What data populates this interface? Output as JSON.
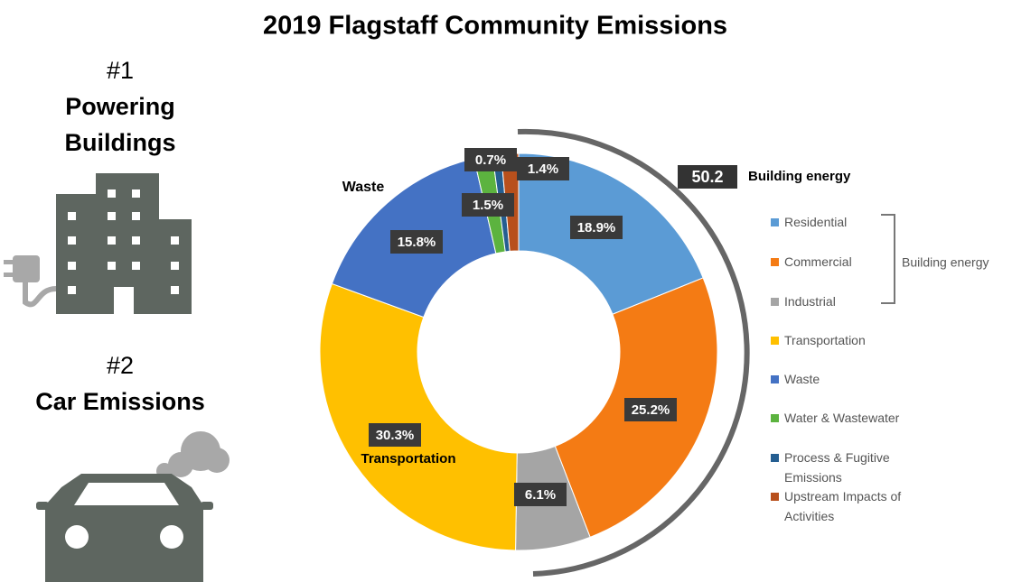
{
  "left_panel": {
    "items": [
      {
        "rank": "#1",
        "label": "Powering Buildings"
      },
      {
        "rank": "#2",
        "label": "Car Emissions"
      }
    ]
  },
  "chart_data": {
    "type": "donut",
    "title": "2019 Flagstaff Community Emissions",
    "categories": [
      "Residential",
      "Commercial",
      "Industrial",
      "Transportation",
      "Waste",
      "Water & Wastewater",
      "Process & Fugitive Emissions",
      "Upstream Impacts of Activities"
    ],
    "values": [
      18.9,
      25.2,
      6.1,
      30.3,
      15.8,
      1.5,
      0.7,
      1.4
    ],
    "value_labels": [
      "18.9%",
      "25.2%",
      "6.1%",
      "30.3%",
      "15.8%",
      "1.5%",
      "0.7%",
      "1.4%"
    ],
    "colors": [
      "#5b9bd5",
      "#f47b14",
      "#a5a5a5",
      "#ffc000",
      "#4472c4",
      "#5cb33f",
      "#255e91",
      "#b8501c"
    ],
    "slice_annotations": [
      "Waste",
      "Transportation"
    ],
    "callout": {
      "value": 50.2,
      "label": "Building energy"
    },
    "bracket_label": "Building energy",
    "legend": "right"
  }
}
